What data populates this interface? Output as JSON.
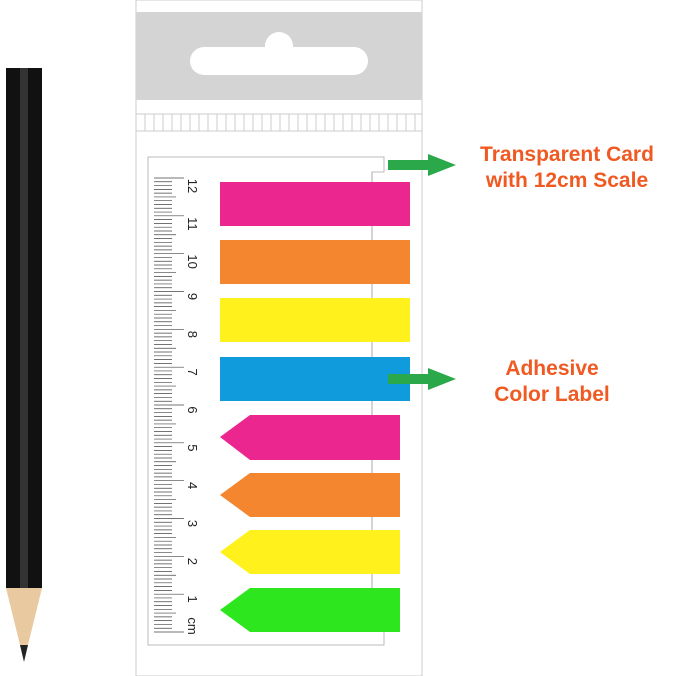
{
  "callouts": {
    "card_line1": "Transparent Card",
    "card_line2": "with 12cm Scale",
    "label_line1": "Adhesive",
    "label_line2": "Color Label"
  },
  "ruler": {
    "unit": "cm",
    "numbers": [
      "1",
      "2",
      "3",
      "4",
      "5",
      "6",
      "7",
      "8",
      "9",
      "10",
      "11",
      "12"
    ]
  },
  "colors": {
    "callout_text": "#f05a22",
    "callout_arrow": "#2aa84a",
    "flag_strips": [
      "#ec268f",
      "#f3862f",
      "#fff21c",
      "#0f9bdc"
    ],
    "arrow_strips": [
      "#ec268f",
      "#f3862f",
      "#fff21c",
      "#2ee61e"
    ]
  }
}
